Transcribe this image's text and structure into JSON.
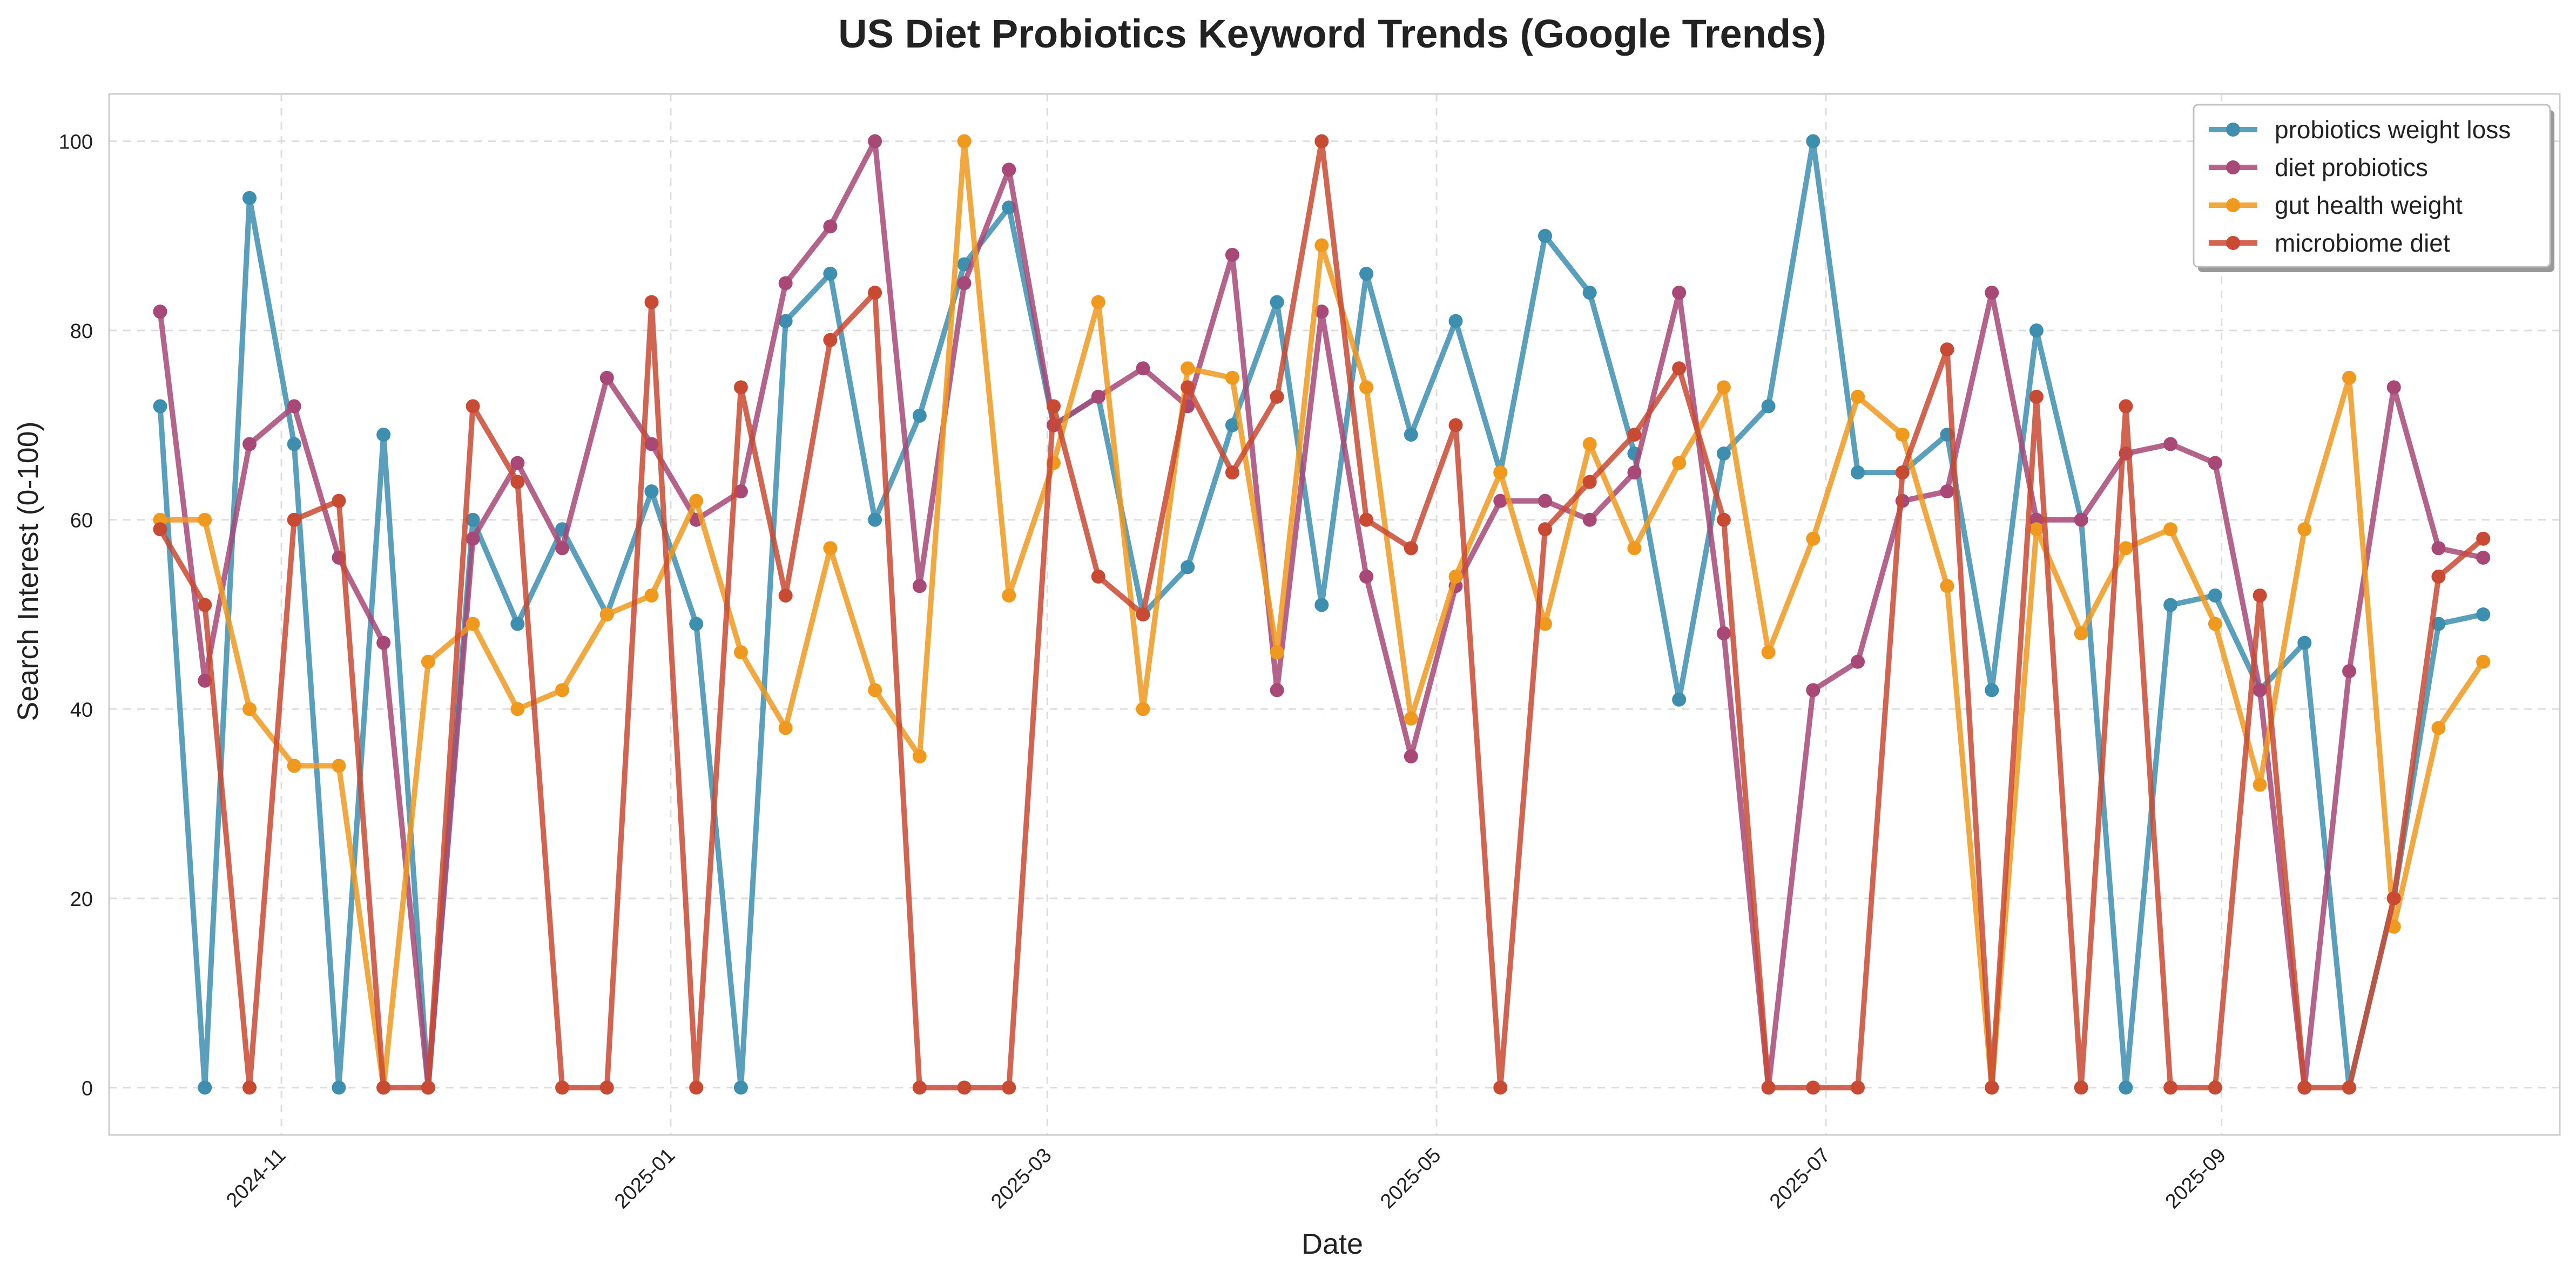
{
  "chart_data": {
    "type": "line",
    "title": "US Diet Probiotics Keyword Trends (Google Trends)",
    "xlabel": "Date",
    "ylabel": "Search Interest (0-100)",
    "ylim": [
      -5,
      105
    ],
    "xlim": [
      "2024-10-05",
      "2025-10-24"
    ],
    "grid": true,
    "legend_position": "top-right",
    "x_ticks": [
      {
        "date": "2024-11-01",
        "label": "2024-11"
      },
      {
        "date": "2025-01-01",
        "label": "2025-01"
      },
      {
        "date": "2025-03-01",
        "label": "2025-03"
      },
      {
        "date": "2025-05-01",
        "label": "2025-05"
      },
      {
        "date": "2025-07-01",
        "label": "2025-07"
      },
      {
        "date": "2025-09-01",
        "label": "2025-09"
      }
    ],
    "y_ticks": [
      0,
      20,
      40,
      60,
      80,
      100
    ],
    "x": [
      "2024-10-13",
      "2024-10-20",
      "2024-10-27",
      "2024-11-03",
      "2024-11-10",
      "2024-11-17",
      "2024-11-24",
      "2024-12-01",
      "2024-12-08",
      "2024-12-15",
      "2024-12-22",
      "2024-12-29",
      "2025-01-05",
      "2025-01-12",
      "2025-01-19",
      "2025-01-26",
      "2025-02-02",
      "2025-02-09",
      "2025-02-16",
      "2025-02-23",
      "2025-03-02",
      "2025-03-09",
      "2025-03-16",
      "2025-03-23",
      "2025-03-30",
      "2025-04-06",
      "2025-04-13",
      "2025-04-20",
      "2025-04-27",
      "2025-05-04",
      "2025-05-11",
      "2025-05-18",
      "2025-05-25",
      "2025-06-01",
      "2025-06-08",
      "2025-06-15",
      "2025-06-22",
      "2025-06-29",
      "2025-07-06",
      "2025-07-13",
      "2025-07-20",
      "2025-07-27",
      "2025-08-03",
      "2025-08-10",
      "2025-08-17",
      "2025-08-24",
      "2025-08-31",
      "2025-09-07",
      "2025-09-14",
      "2025-09-21",
      "2025-09-28",
      "2025-10-05",
      "2025-10-12"
    ],
    "series": [
      {
        "name": "probiotics weight loss",
        "color": "#3d8eaf",
        "values": [
          72,
          0,
          94,
          68,
          0,
          69,
          0,
          60,
          49,
          59,
          50,
          63,
          49,
          0,
          81,
          86,
          60,
          71,
          87,
          93,
          70,
          73,
          50,
          55,
          70,
          83,
          51,
          86,
          69,
          81,
          65,
          90,
          84,
          67,
          41,
          67,
          72,
          100,
          65,
          65,
          69,
          42,
          80,
          60,
          0,
          51,
          52,
          42,
          47,
          0,
          20,
          49,
          50
        ]
      },
      {
        "name": "diet probiotics",
        "color": "#a74877",
        "values": [
          82,
          43,
          68,
          72,
          56,
          47,
          0,
          58,
          66,
          57,
          75,
          68,
          60,
          63,
          85,
          91,
          100,
          53,
          85,
          97,
          70,
          73,
          76,
          72,
          88,
          42,
          82,
          54,
          35,
          53,
          62,
          62,
          60,
          65,
          84,
          48,
          0,
          42,
          45,
          62,
          63,
          84,
          60,
          60,
          67,
          68,
          66,
          42,
          0,
          44,
          74,
          57,
          56
        ]
      },
      {
        "name": "gut health weight",
        "color": "#f0991f",
        "values": [
          60,
          60,
          40,
          34,
          34,
          0,
          45,
          49,
          40,
          42,
          50,
          52,
          62,
          46,
          38,
          57,
          42,
          35,
          100,
          52,
          66,
          83,
          40,
          76,
          75,
          46,
          89,
          74,
          39,
          54,
          65,
          49,
          68,
          57,
          66,
          74,
          46,
          58,
          73,
          69,
          53,
          0,
          59,
          48,
          57,
          59,
          49,
          32,
          59,
          75,
          17,
          38,
          45
        ]
      },
      {
        "name": "microbiome diet",
        "color": "#c94a32",
        "values": [
          59,
          51,
          0,
          60,
          62,
          0,
          0,
          72,
          64,
          0,
          0,
          83,
          0,
          74,
          52,
          79,
          84,
          0,
          0,
          0,
          72,
          54,
          50,
          74,
          65,
          73,
          100,
          60,
          57,
          70,
          0,
          59,
          64,
          69,
          76,
          60,
          0,
          0,
          0,
          65,
          78,
          0,
          73,
          0,
          72,
          0,
          0,
          52,
          0,
          0,
          20,
          54,
          58
        ]
      }
    ]
  }
}
